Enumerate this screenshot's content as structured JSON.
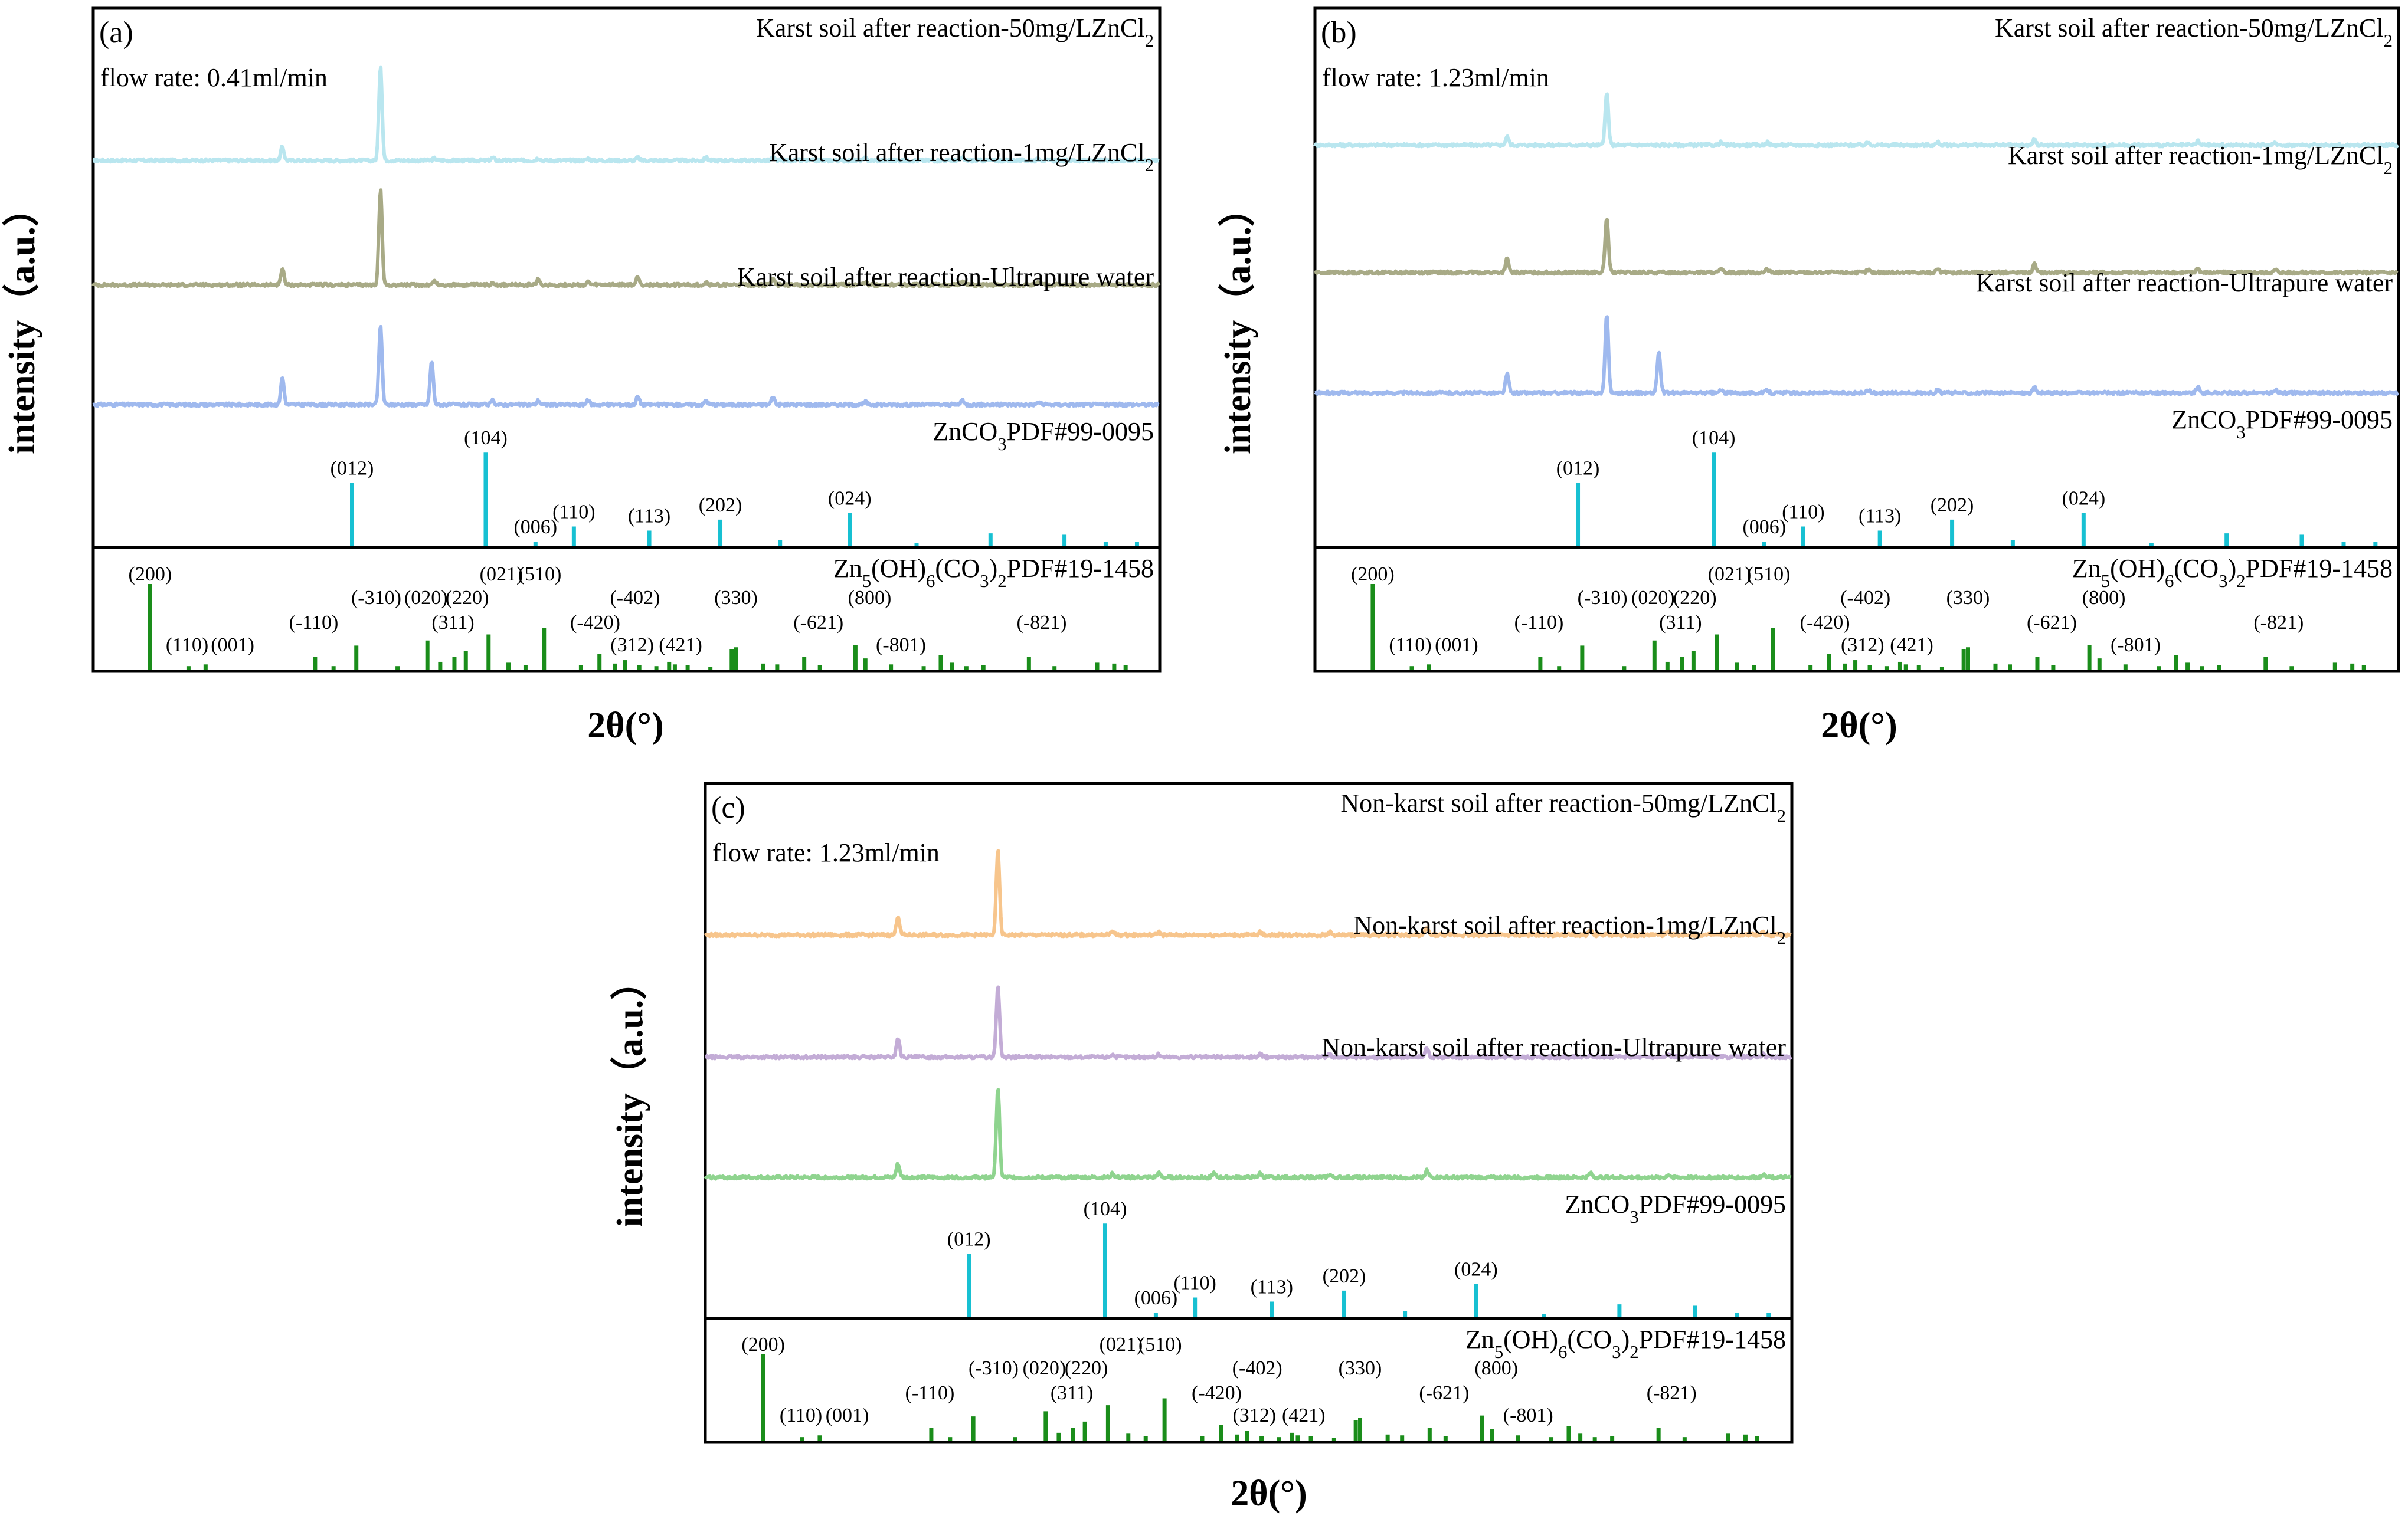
{
  "chart_data": [
    {
      "type": "line",
      "panel": "(a)",
      "flow_rate": "flow rate: 0.41ml/min",
      "ylabel": "intensity（a.u.）",
      "xlabel": "2θ(°)",
      "xlim": [
        5,
        80
      ],
      "grid": false,
      "series": [
        {
          "name": "Karst soil after reaction-50mg/LZnCl",
          "sub": "2",
          "color": "#b9e6ef",
          "peaks": [
            [
              18.3,
              10
            ],
            [
              25.2,
              70
            ],
            [
              29.0,
              1.5
            ],
            [
              33.1,
              2
            ],
            [
              36.3,
              2
            ],
            [
              39.8,
              1.5
            ],
            [
              43.3,
              2
            ],
            [
              48.1,
              2
            ],
            [
              52.8,
              2
            ],
            [
              59.3,
              1.5
            ],
            [
              66.1,
              1.5
            ],
            [
              71.5,
              1.5
            ]
          ]
        },
        {
          "name": "Karst soil after reaction-1mg/LZnCl",
          "sub": "2",
          "color": "#a8aa86",
          "peaks": [
            [
              18.3,
              12
            ],
            [
              25.2,
              70
            ],
            [
              29.0,
              3
            ],
            [
              33.1,
              2
            ],
            [
              36.3,
              4
            ],
            [
              39.8,
              2
            ],
            [
              43.3,
              6
            ],
            [
              48.1,
              2
            ],
            [
              52.8,
              5
            ],
            [
              59.3,
              2
            ],
            [
              66.1,
              3
            ],
            [
              71.5,
              2
            ]
          ]
        },
        {
          "name": "Karst soil after reaction-Ultrapure water",
          "sub": "",
          "color": "#9fb9ee",
          "peaks": [
            [
              18.3,
              20
            ],
            [
              25.2,
              58
            ],
            [
              28.8,
              32
            ],
            [
              33.1,
              3
            ],
            [
              36.3,
              3
            ],
            [
              39.8,
              3
            ],
            [
              43.3,
              6
            ],
            [
              48.1,
              3
            ],
            [
              52.8,
              6
            ],
            [
              59.3,
              2
            ],
            [
              66.1,
              3
            ],
            [
              71.5,
              2
            ]
          ]
        }
      ]
    },
    {
      "type": "line",
      "panel": "(b)",
      "flow_rate": "flow rate: 1.23ml/min",
      "ylabel": "intensity（a.u.）",
      "xlabel": "2θ(°)",
      "xlim": [
        5,
        80
      ],
      "grid": false,
      "series": [
        {
          "name": "Karst soil after reaction-50mg/LZnCl",
          "sub": "2",
          "color": "#b9e6ef",
          "peaks": [
            [
              18.3,
              6
            ],
            [
              25.2,
              38
            ],
            [
              33.1,
              2
            ],
            [
              36.3,
              2
            ],
            [
              43.3,
              2
            ],
            [
              48.1,
              2
            ],
            [
              54.8,
              4
            ],
            [
              66.1,
              3
            ],
            [
              71.5,
              1.5
            ]
          ]
        },
        {
          "name": "Karst soil after reaction-1mg/LZnCl",
          "sub": "2",
          "color": "#a8aa86",
          "peaks": [
            [
              18.3,
              10
            ],
            [
              25.2,
              40
            ],
            [
              33.1,
              2
            ],
            [
              36.3,
              2
            ],
            [
              43.3,
              2
            ],
            [
              48.1,
              2
            ],
            [
              54.8,
              6
            ],
            [
              66.1,
              3
            ],
            [
              71.5,
              2
            ]
          ]
        },
        {
          "name": "Karst soil after reaction-Ultrapure water",
          "sub": "",
          "color": "#9fb9ee",
          "peaks": [
            [
              18.3,
              14
            ],
            [
              25.2,
              58
            ],
            [
              28.8,
              30
            ],
            [
              33.1,
              2
            ],
            [
              36.3,
              2
            ],
            [
              43.3,
              2
            ],
            [
              48.1,
              2
            ],
            [
              54.8,
              4
            ],
            [
              66.1,
              4
            ],
            [
              71.5,
              2
            ]
          ]
        }
      ]
    },
    {
      "type": "line",
      "panel": "(c)",
      "flow_rate": "flow rate: 1.23ml/min",
      "ylabel": "intensity（a.u.）",
      "xlabel": "2θ(°)",
      "xlim": [
        5,
        80
      ],
      "grid": false,
      "series": [
        {
          "name": "Non-karst soil after reaction-50mg/LZnCl",
          "sub": "2",
          "color": "#f7c58c",
          "peaks": [
            [
              18.3,
              14
            ],
            [
              25.2,
              62
            ],
            [
              33.1,
              3
            ],
            [
              36.3,
              2
            ],
            [
              43.3,
              2
            ],
            [
              48.1,
              2
            ],
            [
              54.8,
              5
            ],
            [
              66.1,
              3
            ],
            [
              71.5,
              2
            ],
            [
              78.0,
              2
            ]
          ]
        },
        {
          "name": "Non-karst soil after reaction-1mg/LZnCl",
          "sub": "2",
          "color": "#c3acd6",
          "peaks": [
            [
              18.3,
              14
            ],
            [
              25.2,
              52
            ],
            [
              33.1,
              2
            ],
            [
              36.3,
              2
            ],
            [
              43.3,
              2
            ],
            [
              48.1,
              2
            ],
            [
              54.8,
              7
            ],
            [
              66.1,
              2
            ],
            [
              71.5,
              2
            ],
            [
              78.0,
              2
            ]
          ]
        },
        {
          "name": "Non-karst soil after reaction-Ultrapure water",
          "sub": "",
          "color": "#8fd48f",
          "peaks": [
            [
              18.3,
              10
            ],
            [
              25.2,
              66
            ],
            [
              33.1,
              3
            ],
            [
              36.3,
              3
            ],
            [
              40.1,
              3
            ],
            [
              43.3,
              3
            ],
            [
              48.1,
              2
            ],
            [
              54.8,
              5
            ],
            [
              66.1,
              3
            ],
            [
              71.5,
              2
            ],
            [
              78.0,
              2
            ]
          ]
        }
      ]
    }
  ],
  "references": {
    "znco3": {
      "name": "ZnCO",
      "sub1": "3",
      "suffix": "PDF#99-0095",
      "color": "#17c0d2",
      "lines": [
        [
          23.2,
          46
        ],
        [
          32.6,
          68
        ],
        [
          36.1,
          3
        ],
        [
          38.8,
          14
        ],
        [
          44.1,
          11
        ],
        [
          49.1,
          19
        ],
        [
          53.3,
          4
        ],
        [
          58.2,
          24
        ],
        [
          62.9,
          2
        ],
        [
          68.1,
          9
        ],
        [
          73.3,
          8
        ],
        [
          76.2,
          3
        ],
        [
          78.4,
          3
        ]
      ],
      "labels": [
        {
          "text": "(012)",
          "x": 23.2
        },
        {
          "text": "(104)",
          "x": 32.6
        },
        {
          "text": "(006)",
          "x": 36.1
        },
        {
          "text": "(110)",
          "x": 38.8
        },
        {
          "text": "(113)",
          "x": 44.1
        },
        {
          "text": "(202)",
          "x": 49.1
        },
        {
          "text": "(024)",
          "x": 58.2
        }
      ]
    },
    "hzc": {
      "name_parts": [
        "Zn",
        "5",
        "(OH)",
        "6",
        "(CO",
        "3",
        ")",
        "2",
        "PDF#19-1458"
      ],
      "color": "#1a8d1a",
      "lines": [
        [
          9.0,
          100
        ],
        [
          11.7,
          4
        ],
        [
          12.9,
          6
        ],
        [
          20.6,
          15
        ],
        [
          21.9,
          4
        ],
        [
          23.5,
          28
        ],
        [
          26.4,
          4
        ],
        [
          28.5,
          34
        ],
        [
          29.4,
          9
        ],
        [
          30.4,
          15
        ],
        [
          31.2,
          22
        ],
        [
          32.8,
          41
        ],
        [
          34.2,
          8
        ],
        [
          35.4,
          5
        ],
        [
          36.7,
          49
        ],
        [
          39.3,
          5
        ],
        [
          40.6,
          18
        ],
        [
          41.7,
          7
        ],
        [
          42.4,
          11
        ],
        [
          43.4,
          5
        ],
        [
          44.6,
          4
        ],
        [
          45.5,
          9
        ],
        [
          45.9,
          6
        ],
        [
          46.8,
          5
        ],
        [
          48.4,
          3
        ],
        [
          49.9,
          24
        ],
        [
          50.2,
          26
        ],
        [
          52.1,
          7
        ],
        [
          53.1,
          6
        ],
        [
          55.0,
          15
        ],
        [
          56.1,
          5
        ],
        [
          58.6,
          29
        ],
        [
          59.3,
          13
        ],
        [
          61.1,
          6
        ],
        [
          63.4,
          4
        ],
        [
          64.6,
          17
        ],
        [
          65.4,
          8
        ],
        [
          66.4,
          4
        ],
        [
          67.6,
          5
        ],
        [
          70.8,
          15
        ],
        [
          72.6,
          4
        ],
        [
          75.6,
          8
        ],
        [
          76.8,
          7
        ],
        [
          77.6,
          5
        ]
      ],
      "labels": [
        {
          "text": "(200)",
          "x": 9.0,
          "row": 0
        },
        {
          "text": "(110)",
          "x": 11.6,
          "row": 3
        },
        {
          "text": "(001)",
          "x": 14.8,
          "row": 3
        },
        {
          "text": "(-110)",
          "x": 20.5,
          "row": 2
        },
        {
          "text": "(-310)",
          "x": 24.9,
          "row": 1
        },
        {
          "text": "(020)",
          "x": 28.4,
          "row": 1
        },
        {
          "text": "(311)",
          "x": 30.3,
          "row": 2
        },
        {
          "text": "(220)",
          "x": 31.3,
          "row": 1
        },
        {
          "text": "(021)",
          "x": 33.7,
          "row": 0
        },
        {
          "text": "(510)",
          "x": 36.4,
          "row": 0
        },
        {
          "text": "(-420)",
          "x": 40.3,
          "row": 2
        },
        {
          "text": "(-402)",
          "x": 43.1,
          "row": 1
        },
        {
          "text": "(312)",
          "x": 42.9,
          "row": 3
        },
        {
          "text": "(421)",
          "x": 46.3,
          "row": 3
        },
        {
          "text": "(330)",
          "x": 50.2,
          "row": 1
        },
        {
          "text": "(-621)",
          "x": 56.0,
          "row": 2
        },
        {
          "text": "(800)",
          "x": 59.6,
          "row": 1
        },
        {
          "text": "(-801)",
          "x": 61.8,
          "row": 3
        },
        {
          "text": "(-821)",
          "x": 71.7,
          "row": 2
        }
      ]
    }
  }
}
